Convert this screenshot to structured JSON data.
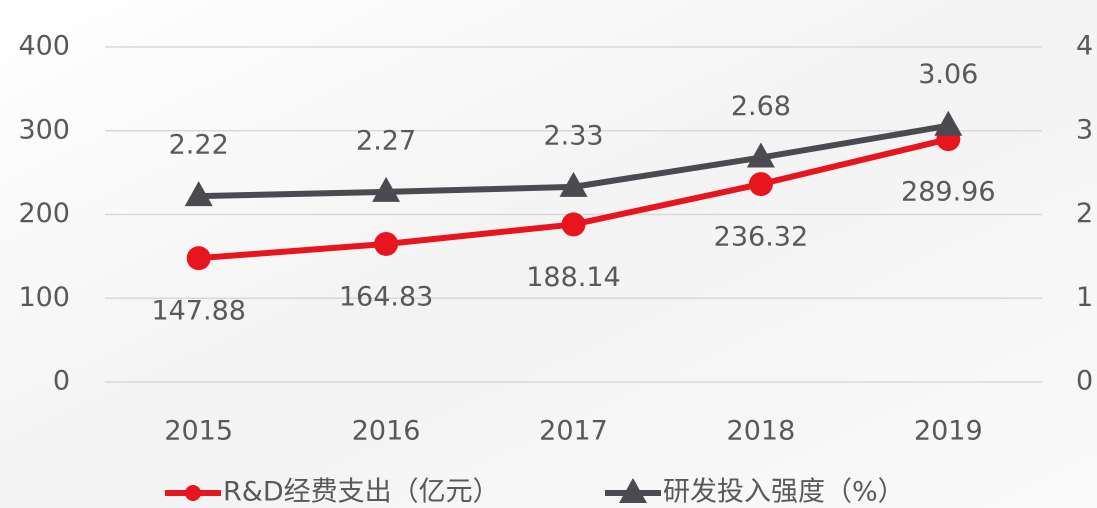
{
  "chart_data": {
    "type": "line",
    "categories": [
      "2015",
      "2016",
      "2017",
      "2018",
      "2019"
    ],
    "series": [
      {
        "name": "R&D经费支出（亿元）",
        "color": "#e8141e",
        "marker": "circle",
        "values": [
          147.88,
          164.83,
          188.14,
          236.32,
          289.96
        ]
      },
      {
        "name": "研发投入强度（%）",
        "color": "#4a4a50",
        "marker": "triangle",
        "axis": "y2",
        "values": [
          2.22,
          2.27,
          2.33,
          2.68,
          3.06
        ]
      }
    ],
    "ylim": [
      0,
      400
    ],
    "yticks": [
      0,
      100,
      200,
      300,
      400
    ],
    "y2lim": [
      0,
      4
    ],
    "y2ticks": [
      0,
      1,
      2,
      3,
      4
    ],
    "grid": true,
    "legend": "bottom"
  }
}
